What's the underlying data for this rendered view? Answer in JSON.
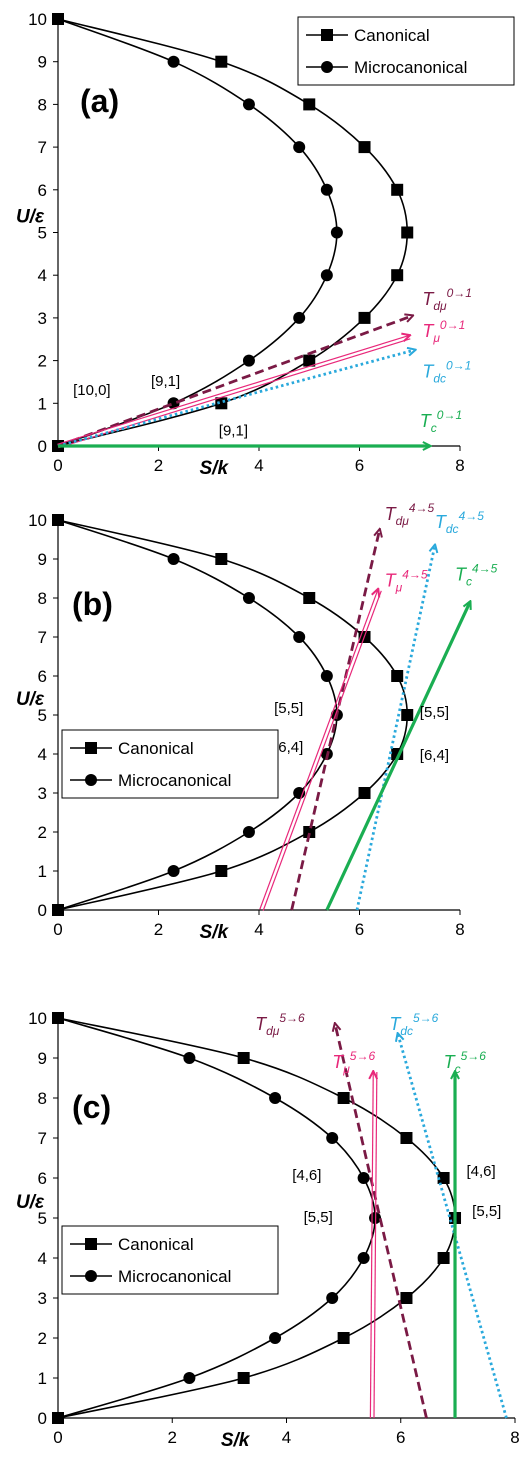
{
  "colors": {
    "series": "#000000",
    "T_dmu": "#7a1a45",
    "T_mu": "#e8287a",
    "T_dc": "#2aa9dc",
    "T_c": "#1aae52"
  },
  "chart_data": [
    {
      "type": "scatter",
      "panel_label": "(a)",
      "xlabel": "S/k",
      "ylabel": "U/ε",
      "xlim": [
        0,
        8
      ],
      "ylim": [
        0,
        10
      ],
      "xticks": [
        "0",
        "2",
        "4",
        "6",
        "8"
      ],
      "yticks": [
        "0",
        "1",
        "2",
        "3",
        "4",
        "5",
        "6",
        "7",
        "8",
        "9",
        "10"
      ],
      "legend": {
        "position": "top-right",
        "entries": [
          "Canonical",
          "Microcanonical"
        ]
      },
      "series": [
        {
          "name": "Canonical",
          "marker": "square",
          "points": [
            [
              0,
              0
            ],
            [
              3.25,
              1
            ],
            [
              5.0,
              2
            ],
            [
              6.1,
              3
            ],
            [
              6.75,
              4
            ],
            [
              6.95,
              5
            ],
            [
              6.75,
              6
            ],
            [
              6.1,
              7
            ],
            [
              5.0,
              8
            ],
            [
              3.25,
              9
            ],
            [
              0,
              10
            ]
          ]
        },
        {
          "name": "Microcanonical",
          "marker": "circle",
          "points": [
            [
              0,
              0
            ],
            [
              2.3,
              1
            ],
            [
              3.8,
              2
            ],
            [
              4.8,
              3
            ],
            [
              5.35,
              4
            ],
            [
              5.55,
              5
            ],
            [
              5.35,
              6
            ],
            [
              4.8,
              7
            ],
            [
              3.8,
              8
            ],
            [
              2.3,
              9
            ],
            [
              0,
              10
            ]
          ]
        }
      ],
      "annotations": [
        {
          "text": "[10,0]",
          "x": 0.3,
          "y": 1.2
        },
        {
          "text": "[9,1]",
          "x": 1.85,
          "y": 1.4
        },
        {
          "text": "[9,1]",
          "x": 3.2,
          "y": 0.25
        }
      ],
      "vectors": [
        {
          "id": "T_dmu",
          "base": "T",
          "sub": "dμ",
          "sup": "0→1",
          "style": "dashed",
          "from": [
            0,
            0
          ],
          "to": [
            7.05,
            3.05
          ],
          "label_at": [
            7.25,
            3.3
          ]
        },
        {
          "id": "T_mu",
          "base": "T",
          "sub": "μ",
          "sup": "0→1",
          "style": "double",
          "from": [
            0,
            0
          ],
          "to": [
            7.0,
            2.55
          ],
          "label_at": [
            7.25,
            2.55
          ]
        },
        {
          "id": "T_dc",
          "base": "T",
          "sub": "dc",
          "sup": "0→1",
          "style": "dotted",
          "from": [
            0,
            0
          ],
          "to": [
            7.1,
            2.25
          ],
          "label_at": [
            7.25,
            1.6
          ]
        },
        {
          "id": "T_c",
          "base": "T",
          "sub": "c",
          "sup": "0→1",
          "style": "solid",
          "from": [
            0,
            0
          ],
          "to": [
            7.4,
            0
          ],
          "label_at": [
            7.2,
            0.45
          ]
        }
      ]
    },
    {
      "type": "scatter",
      "panel_label": "(b)",
      "xlabel": "S/k",
      "ylabel": "U/ε",
      "xlim": [
        0,
        8
      ],
      "ylim": [
        0,
        10
      ],
      "xticks": [
        "0",
        "2",
        "4",
        "6",
        "8"
      ],
      "yticks": [
        "0",
        "1",
        "2",
        "3",
        "4",
        "5",
        "6",
        "7",
        "8",
        "9",
        "10"
      ],
      "legend": {
        "position": "center-left",
        "entries": [
          "Canonical",
          "Microcanonical"
        ]
      },
      "series": [
        {
          "name": "Canonical",
          "marker": "square",
          "points": [
            [
              0,
              0
            ],
            [
              3.25,
              1
            ],
            [
              5.0,
              2
            ],
            [
              6.1,
              3
            ],
            [
              6.75,
              4
            ],
            [
              6.95,
              5
            ],
            [
              6.75,
              6
            ],
            [
              6.1,
              7
            ],
            [
              5.0,
              8
            ],
            [
              3.25,
              9
            ],
            [
              0,
              10
            ]
          ]
        },
        {
          "name": "Microcanonical",
          "marker": "circle",
          "points": [
            [
              0,
              0
            ],
            [
              2.3,
              1
            ],
            [
              3.8,
              2
            ],
            [
              4.8,
              3
            ],
            [
              5.35,
              4
            ],
            [
              5.55,
              5
            ],
            [
              5.35,
              6
            ],
            [
              4.8,
              7
            ],
            [
              3.8,
              8
            ],
            [
              2.3,
              9
            ],
            [
              0,
              10
            ]
          ]
        }
      ],
      "annotations": [
        {
          "text": "[5,5]",
          "x": 4.3,
          "y": 5.05
        },
        {
          "text": "[6,4]",
          "x": 4.3,
          "y": 4.05
        },
        {
          "text": "[5,5]",
          "x": 7.2,
          "y": 4.95
        },
        {
          "text": "[6,4]",
          "x": 7.2,
          "y": 3.85
        }
      ],
      "vectors": [
        {
          "id": "T_dmu",
          "base": "T",
          "sub": "dμ",
          "sup": "4→5",
          "style": "dashed",
          "from": [
            4.65,
            0
          ],
          "to": [
            6.4,
            9.75
          ],
          "label_at": [
            6.5,
            10.0
          ]
        },
        {
          "id": "T_mu",
          "base": "T",
          "sub": "μ",
          "sup": "4→5",
          "style": "double",
          "from": [
            4.05,
            0
          ],
          "to": [
            6.4,
            8.2
          ],
          "label_at": [
            6.5,
            8.3
          ]
        },
        {
          "id": "T_dc",
          "base": "T",
          "sub": "dc",
          "sup": "4→5",
          "style": "dotted",
          "from": [
            5.95,
            0
          ],
          "to": [
            7.5,
            9.35
          ],
          "label_at": [
            7.5,
            9.8
          ]
        },
        {
          "id": "T_c",
          "base": "T",
          "sub": "c",
          "sup": "4→5",
          "style": "solid",
          "from": [
            5.35,
            0
          ],
          "to": [
            8.2,
            7.9
          ],
          "label_at": [
            7.9,
            8.45
          ]
        }
      ]
    },
    {
      "type": "scatter",
      "panel_label": "(c)",
      "xlabel": "S/k",
      "ylabel": "U/ε",
      "xlim": [
        0,
        8
      ],
      "ylim": [
        0,
        10
      ],
      "xticks": [
        "0",
        "2",
        "4",
        "6",
        "8"
      ],
      "yticks": [
        "0",
        "1",
        "2",
        "3",
        "4",
        "5",
        "6",
        "7",
        "8",
        "9",
        "10"
      ],
      "legend": {
        "position": "center-left",
        "entries": [
          "Canonical",
          "Microcanonical"
        ]
      },
      "series": [
        {
          "name": "Canonical",
          "marker": "square",
          "points": [
            [
              0,
              0
            ],
            [
              3.25,
              1
            ],
            [
              5.0,
              2
            ],
            [
              6.1,
              3
            ],
            [
              6.75,
              4
            ],
            [
              6.95,
              5
            ],
            [
              6.75,
              6
            ],
            [
              6.1,
              7
            ],
            [
              5.0,
              8
            ],
            [
              3.25,
              9
            ],
            [
              0,
              10
            ]
          ]
        },
        {
          "name": "Microcanonical",
          "marker": "circle",
          "points": [
            [
              0,
              0
            ],
            [
              2.3,
              1
            ],
            [
              3.8,
              2
            ],
            [
              4.8,
              3
            ],
            [
              5.35,
              4
            ],
            [
              5.55,
              5
            ],
            [
              5.35,
              6
            ],
            [
              4.8,
              7
            ],
            [
              3.8,
              8
            ],
            [
              2.3,
              9
            ],
            [
              0,
              10
            ]
          ]
        }
      ],
      "annotations": [
        {
          "text": "[4,6]",
          "x": 4.1,
          "y": 5.95
        },
        {
          "text": "[5,5]",
          "x": 4.3,
          "y": 4.9
        },
        {
          "text": "[4,6]",
          "x": 7.15,
          "y": 6.05
        },
        {
          "text": "[5,5]",
          "x": 7.25,
          "y": 5.05
        }
      ],
      "vectors": [
        {
          "id": "T_dmu",
          "base": "T",
          "sub": "dμ",
          "sup": "5→6",
          "style": "dashed",
          "from": [
            6.45,
            0
          ],
          "to": [
            4.85,
            9.85
          ],
          "label_at": [
            3.45,
            9.7
          ]
        },
        {
          "id": "T_mu",
          "base": "T",
          "sub": "μ",
          "sup": "5→6",
          "style": "double",
          "from": [
            5.5,
            0
          ],
          "to": [
            5.55,
            8.65
          ],
          "label_at": [
            4.8,
            8.75
          ]
        },
        {
          "id": "T_dc",
          "base": "T",
          "sub": "dc",
          "sup": "5→6",
          "style": "dotted",
          "from": [
            7.85,
            0
          ],
          "to": [
            5.95,
            9.6
          ],
          "label_at": [
            5.8,
            9.7
          ]
        },
        {
          "id": "T_c",
          "base": "T",
          "sub": "c",
          "sup": "5→6",
          "style": "solid",
          "from": [
            6.95,
            0
          ],
          "to": [
            6.95,
            8.65
          ],
          "label_at": [
            6.75,
            8.75
          ]
        }
      ]
    }
  ]
}
